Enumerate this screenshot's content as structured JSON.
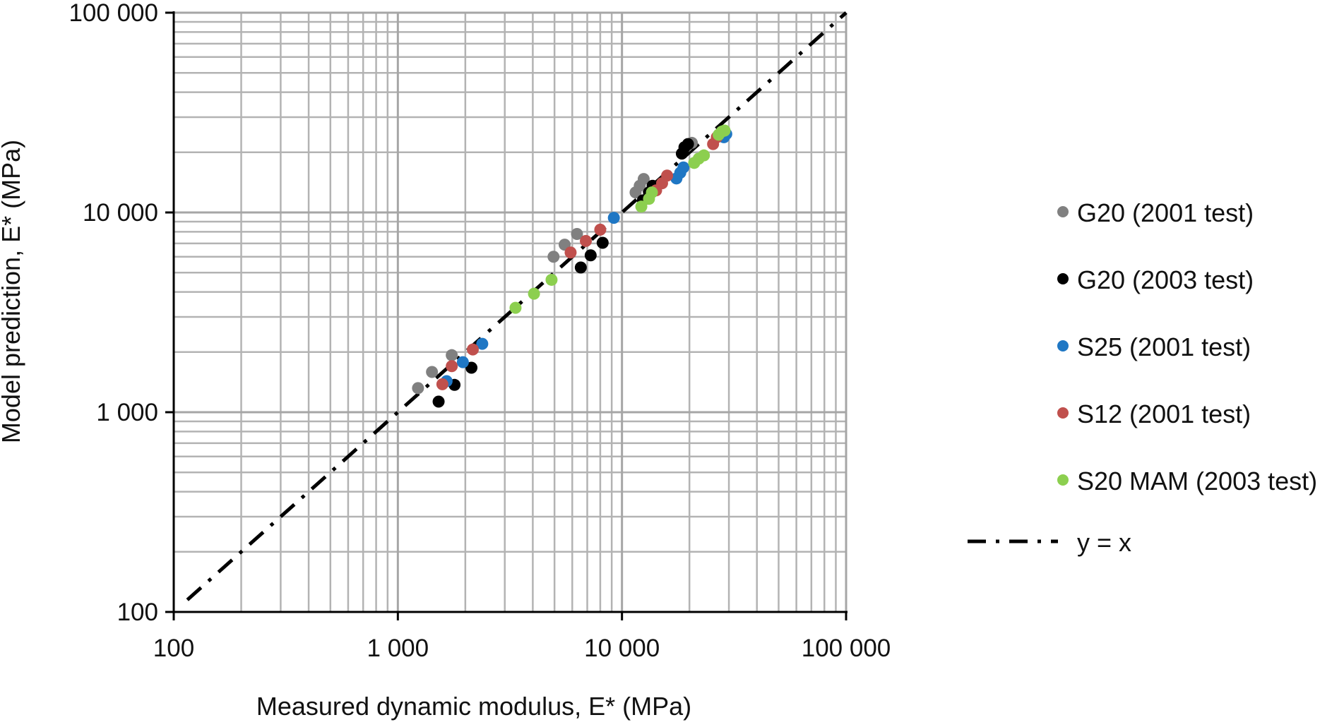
{
  "chart_data": {
    "type": "scatter",
    "xscale": "log",
    "yscale": "log",
    "xlim": [
      100,
      100000
    ],
    "ylim": [
      100,
      100000
    ],
    "xticks": [
      "100",
      "1 000",
      "10 000",
      "100 000"
    ],
    "yticks": [
      "100",
      "1 000",
      "10 000",
      "100 000"
    ],
    "xlabel": "Measured dynamic modulus, E* (MPa)",
    "ylabel": "Model prediction, E* (MPa)",
    "grid": true,
    "legend_position": "right",
    "series": [
      {
        "name": "G20 (2001 test)",
        "color": "#808080",
        "points": [
          [
            1230,
            1320
          ],
          [
            1420,
            1590
          ],
          [
            1740,
            1930
          ],
          [
            4950,
            6000
          ],
          [
            5550,
            6900
          ],
          [
            6300,
            7800
          ],
          [
            11500,
            12600
          ],
          [
            12000,
            13600
          ],
          [
            12500,
            14700
          ],
          [
            19500,
            21500
          ],
          [
            20500,
            22300
          ]
        ]
      },
      {
        "name": "G20 (2003 test)",
        "color": "#000000",
        "points": [
          [
            1520,
            1130
          ],
          [
            1790,
            1370
          ],
          [
            2130,
            1670
          ],
          [
            6550,
            5300
          ],
          [
            7250,
            6100
          ],
          [
            8200,
            7050
          ],
          [
            12400,
            11500
          ],
          [
            13200,
            12600
          ],
          [
            13700,
            13600
          ],
          [
            18500,
            19700
          ],
          [
            19000,
            21200
          ],
          [
            19700,
            22000
          ]
        ]
      },
      {
        "name": "S25 (2001 test)",
        "color": "#1f77c4",
        "points": [
          [
            1650,
            1430
          ],
          [
            1950,
            1780
          ],
          [
            2380,
            2200
          ],
          [
            9200,
            9400
          ],
          [
            17500,
            14800
          ],
          [
            18200,
            15800
          ],
          [
            18800,
            16800
          ],
          [
            28500,
            23800
          ],
          [
            29200,
            24700
          ]
        ]
      },
      {
        "name": "S12 (2001 test)",
        "color": "#c0504d",
        "points": [
          [
            1580,
            1380
          ],
          [
            1740,
            1700
          ],
          [
            2160,
            2060
          ],
          [
            5900,
            6300
          ],
          [
            6900,
            7200
          ],
          [
            8000,
            8200
          ],
          [
            14200,
            12900
          ],
          [
            15100,
            14000
          ],
          [
            15900,
            15300
          ],
          [
            25500,
            22000
          ],
          [
            26500,
            23800
          ]
        ]
      },
      {
        "name": "S20 MAM (2003 test)",
        "color": "#8ccf4f",
        "points": [
          [
            3350,
            3330
          ],
          [
            4050,
            3920
          ],
          [
            4850,
            4600
          ],
          [
            12200,
            10700
          ],
          [
            13200,
            11700
          ],
          [
            13600,
            12600
          ],
          [
            21000,
            17700
          ],
          [
            22000,
            18600
          ],
          [
            23200,
            19300
          ],
          [
            27000,
            24500
          ],
          [
            27900,
            25400
          ],
          [
            28700,
            25700
          ]
        ]
      }
    ],
    "reference_line": {
      "name": "y = x",
      "style": "dash-dot",
      "color": "#000000"
    }
  }
}
